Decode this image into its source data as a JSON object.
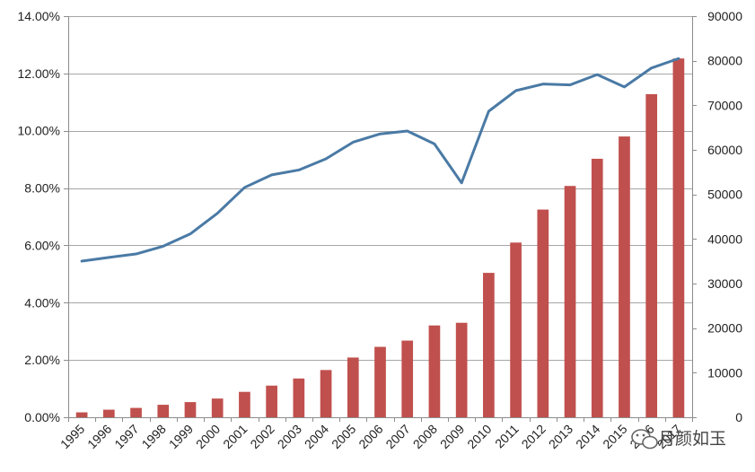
{
  "chart_data": {
    "type": "bar",
    "categories": [
      "1995",
      "1996",
      "1997",
      "1998",
      "1999",
      "2000",
      "2001",
      "2002",
      "2003",
      "2004",
      "2005",
      "2006",
      "2007",
      "2008",
      "2009",
      "2010",
      "2011",
      "2012",
      "2013",
      "2014",
      "2015",
      "2016",
      "2017"
    ],
    "series": [
      {
        "type": "bar",
        "axis": "right",
        "color": "#c0504d",
        "values": [
          1100,
          1700,
          2100,
          2800,
          3400,
          4200,
          5700,
          7100,
          8700,
          10600,
          13400,
          15800,
          17200,
          20600,
          21200,
          32400,
          39200,
          46600,
          51900,
          58000,
          63000,
          72500,
          80500
        ]
      },
      {
        "type": "line",
        "axis": "left",
        "color": "#4a7aa5",
        "values": [
          5.45,
          5.58,
          5.7,
          5.97,
          6.4,
          7.12,
          8.02,
          8.46,
          8.63,
          9.02,
          9.6,
          9.89,
          9.99,
          9.54,
          8.18,
          10.68,
          11.4,
          11.63,
          11.6,
          11.96,
          11.53,
          12.19,
          12.52
        ]
      }
    ],
    "y_left": {
      "ylim": [
        0,
        14
      ],
      "ticks": [
        0,
        2,
        4,
        6,
        8,
        10,
        12,
        14
      ],
      "tick_labels": [
        "0.00%",
        "2.00%",
        "4.00%",
        "6.00%",
        "8.00%",
        "10.00%",
        "12.00%",
        "14.00%"
      ]
    },
    "y_right": {
      "ylim": [
        0,
        90000
      ],
      "ticks": [
        0,
        10000,
        20000,
        30000,
        40000,
        50000,
        60000,
        70000,
        80000,
        90000
      ],
      "tick_labels": [
        "0",
        "10000",
        "20000",
        "30000",
        "40000",
        "50000",
        "60000",
        "70000",
        "80000",
        "90000"
      ]
    },
    "grid": true,
    "legend": "none",
    "title": "",
    "xlabel": "",
    "ylabel": ""
  },
  "watermark": {
    "text": "月颜如玉",
    "icon": "wechat-icon"
  }
}
